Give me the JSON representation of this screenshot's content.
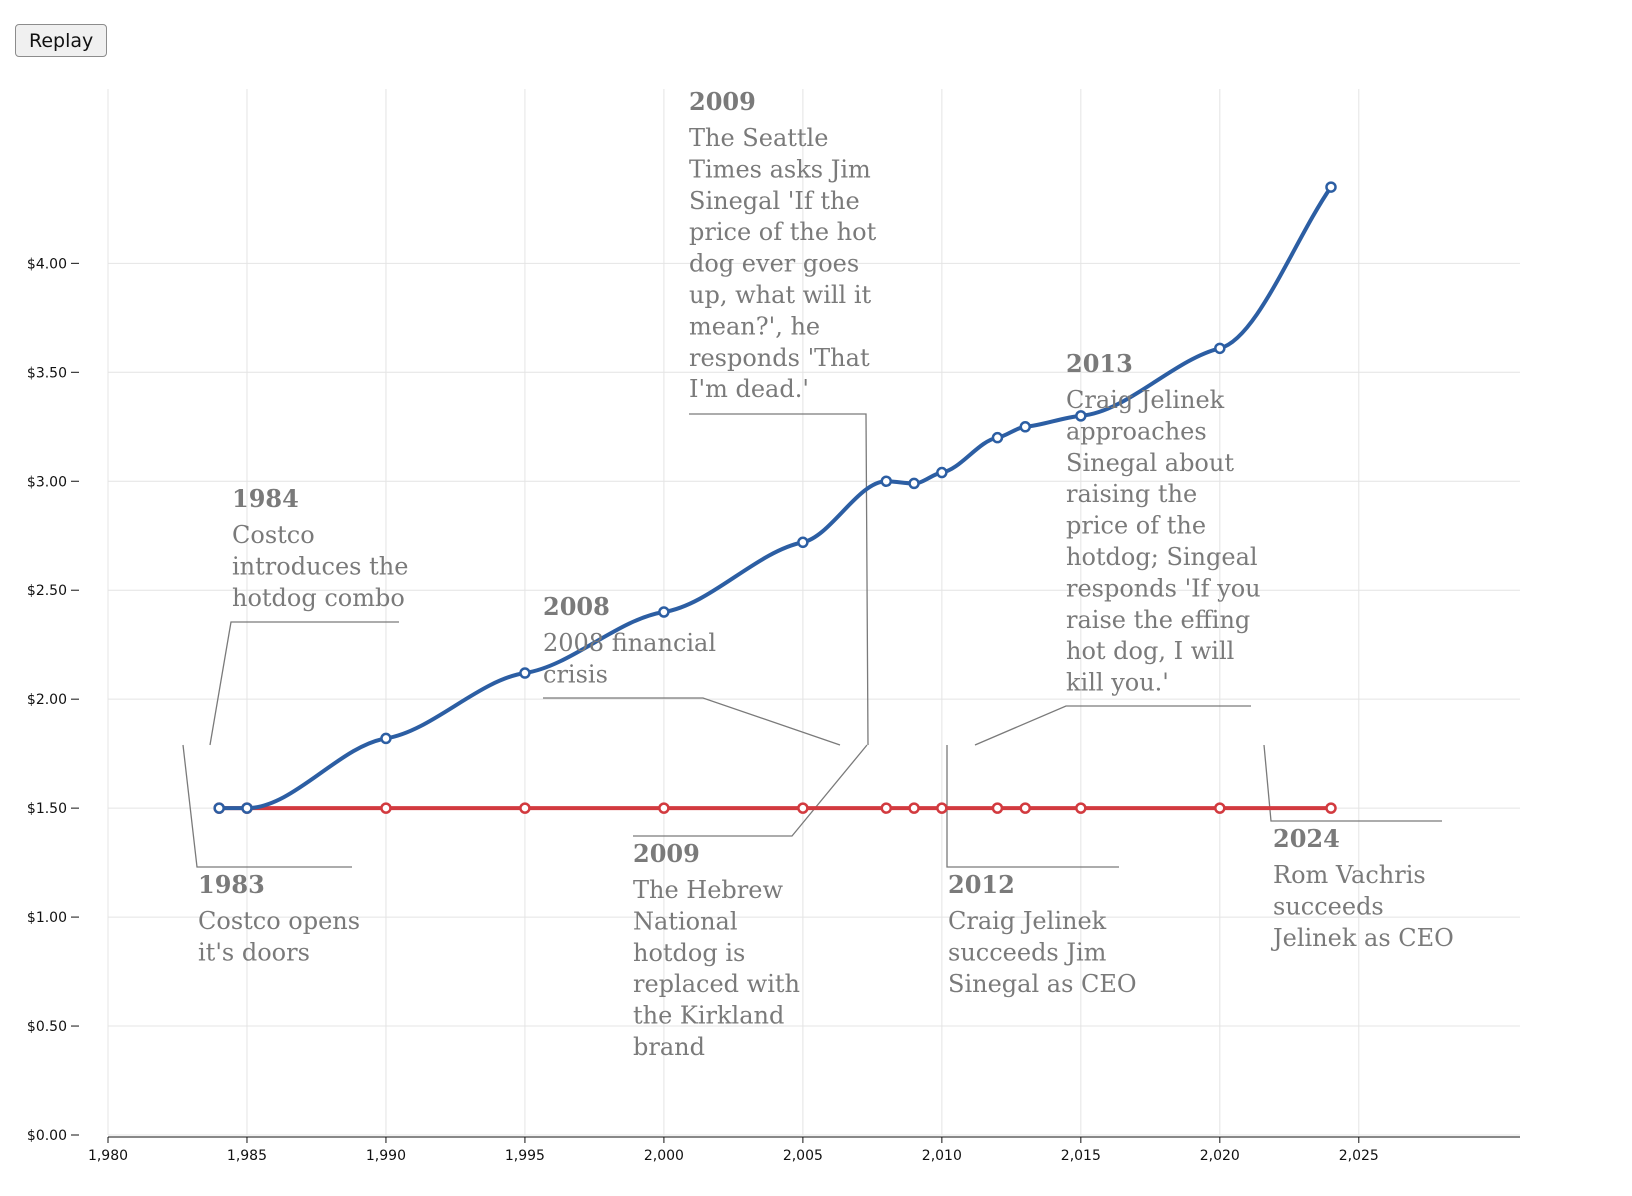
{
  "controls": {
    "replay_label": "Replay"
  },
  "colors": {
    "series_a": "#2c5ea3",
    "series_b": "#d23a3f",
    "grid": "#e4e4e4",
    "annotation": "#7a7a7a"
  },
  "chart_data": {
    "type": "line",
    "title": "",
    "xlabel": "",
    "ylabel": "",
    "xlim": [
      1980,
      2030.8
    ],
    "ylim": [
      0,
      4.8
    ],
    "grid": true,
    "x_ticks": [
      1980,
      1985,
      1990,
      1995,
      2000,
      2005,
      2010,
      2015,
      2020,
      2025
    ],
    "x_tick_labels": [
      "1,980",
      "1,985",
      "1,990",
      "1,995",
      "2,000",
      "2,005",
      "2,010",
      "2,015",
      "2,020",
      "2,025"
    ],
    "y_ticks": [
      0,
      0.5,
      1,
      1.5,
      2,
      2.5,
      3,
      3.5,
      4
    ],
    "y_tick_labels": [
      "$0.00",
      "$0.50",
      "$1.00",
      "$1.50",
      "$2.00",
      "$2.50",
      "$3.00",
      "$3.50",
      "$4.00"
    ],
    "series": [
      {
        "color": "#2c5ea3",
        "x": [
          1984,
          1985,
          1990,
          1995,
          2000,
          2005,
          2008,
          2009,
          2010,
          2012,
          2013,
          2015,
          2020,
          2024
        ],
        "y": [
          1.5,
          1.5,
          1.82,
          2.12,
          2.4,
          2.72,
          3.0,
          2.99,
          3.04,
          3.2,
          3.25,
          3.3,
          3.61,
          4.35
        ]
      },
      {
        "color": "#d23a3f",
        "x": [
          1984,
          1985,
          1990,
          1995,
          2000,
          2005,
          2008,
          2009,
          2010,
          2012,
          2013,
          2015,
          2020,
          2024
        ],
        "y": [
          1.5,
          1.5,
          1.5,
          1.5,
          1.5,
          1.5,
          1.5,
          1.5,
          1.5,
          1.5,
          1.5,
          1.5,
          1.5,
          1.5
        ]
      }
    ],
    "annotations": [
      {
        "id": "a1983",
        "year": "1983",
        "lines": [
          "Costco opens",
          "it's doors"
        ]
      },
      {
        "id": "a1984",
        "year": "1984",
        "lines": [
          "Costco",
          "introduces the",
          "hotdog combo"
        ]
      },
      {
        "id": "a2008",
        "year": "2008",
        "lines": [
          "2008 financial",
          "crisis"
        ]
      },
      {
        "id": "a2009a",
        "year": "2009",
        "lines": [
          "The Seattle",
          "Times asks Jim",
          "Sinegal 'If the",
          "price of the hot",
          "dog ever goes",
          "up, what will it",
          "mean?', he",
          "responds 'That",
          "I'm dead.'"
        ]
      },
      {
        "id": "a2009b",
        "year": "2009",
        "lines": [
          "The Hebrew",
          "National",
          "hotdog is",
          "replaced with",
          "the Kirkland",
          "brand"
        ]
      },
      {
        "id": "a2012",
        "year": "2012",
        "lines": [
          "Craig Jelinek",
          "succeeds Jim",
          "Sinegal as CEO"
        ]
      },
      {
        "id": "a2013",
        "year": "2013",
        "lines": [
          "Craig Jelinek",
          "approaches",
          "Sinegal about",
          "raising the",
          "price of the",
          "hotdog; Singeal",
          "responds 'If you",
          "raise the effing",
          "hot dog, I will",
          "kill you.'"
        ]
      },
      {
        "id": "a2024",
        "year": "2024",
        "lines": [
          "Rom Vachris",
          "succeeds",
          "Jelinek as CEO"
        ]
      }
    ]
  }
}
